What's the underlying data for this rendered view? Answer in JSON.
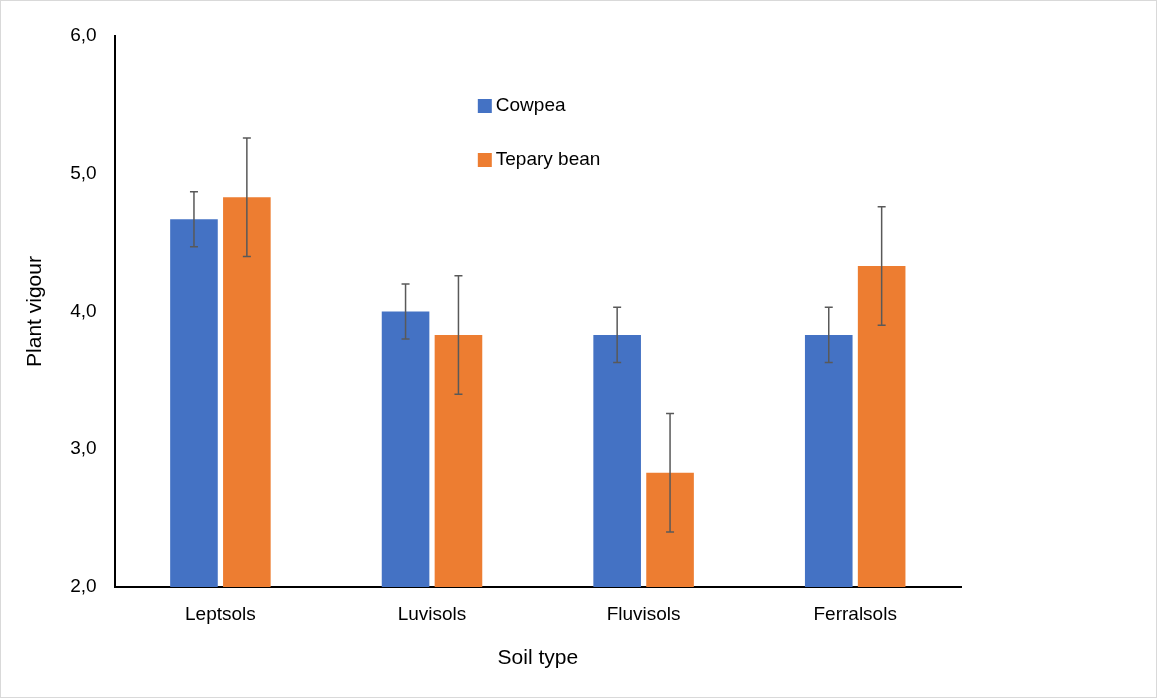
{
  "chart_data": {
    "type": "bar",
    "xlabel": "Soil type",
    "ylabel": "Plant vigour",
    "categories": [
      "Leptsols",
      "Luvisols",
      "Fluvisols",
      "Ferralsols"
    ],
    "series": [
      {
        "name": "Cowpea",
        "color": "#4472c4",
        "values": [
          4.67,
          4.0,
          3.83,
          3.83
        ],
        "errors": [
          0.2,
          0.2,
          0.2,
          0.2
        ]
      },
      {
        "name": "Tepary bean",
        "color": "#ed7d31",
        "values": [
          4.83,
          3.83,
          2.83,
          4.33
        ],
        "errors": [
          0.43,
          0.43,
          0.43,
          0.43
        ]
      }
    ],
    "ylim": [
      2,
      6
    ],
    "yticks": [
      {
        "value": 2,
        "label": "2,0"
      },
      {
        "value": 3,
        "label": "3,0"
      },
      {
        "value": 4,
        "label": "4,0"
      },
      {
        "value": 5,
        "label": "5,0"
      },
      {
        "value": 6,
        "label": "6,0"
      }
    ],
    "grid": false,
    "legend": "top"
  }
}
